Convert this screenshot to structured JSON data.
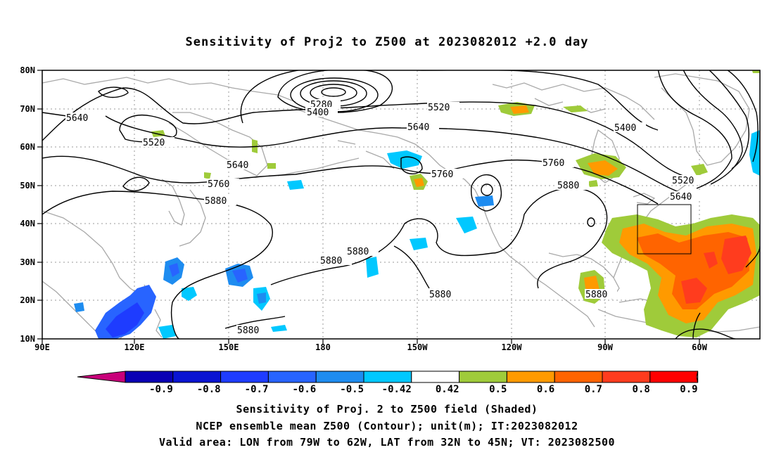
{
  "title": "Sensitivity of Proj2 to Z500 at 2023082012 +2.0 day",
  "lat_labels": [
    "80N",
    "70N",
    "60N",
    "50N",
    "40N",
    "30N",
    "20N",
    "10N"
  ],
  "lon_labels": [
    "90E",
    "120E",
    "150E",
    "180",
    "150W",
    "120W",
    "90W",
    "60W"
  ],
  "contour_labels": [
    "5280",
    "5400",
    "5520",
    "5640",
    "5520",
    "5640",
    "5640",
    "5760",
    "5880",
    "5760",
    "5400",
    "5760",
    "5880",
    "5520",
    "5640",
    "5880",
    "5880",
    "5880",
    "5880",
    "5880"
  ],
  "colorbar": {
    "ticks": [
      "-0.9",
      "-0.8",
      "-0.7",
      "-0.6",
      "-0.5",
      "-0.42",
      "0.42",
      "0.5",
      "0.6",
      "0.7",
      "0.8",
      "0.9"
    ],
    "colors": [
      "#c8007a",
      "#0a00b4",
      "#0a14d2",
      "#1e3cff",
      "#2864ff",
      "#1e8cf0",
      "#00c8ff",
      "#ffffff",
      "#9fcb3a",
      "#ff9a00",
      "#ff6400",
      "#ff3c1e",
      "#ff0000",
      "#f5a0c8"
    ]
  },
  "caption": {
    "line1": "Sensitivity of Proj. 2 to Z500 field (Shaded)",
    "line2": "NCEP ensemble mean Z500 (Contour); unit(m); IT:2023082012",
    "line3": "Valid area: LON from 79W to 62W, LAT from 32N to 45N; VT: 2023082500"
  }
}
